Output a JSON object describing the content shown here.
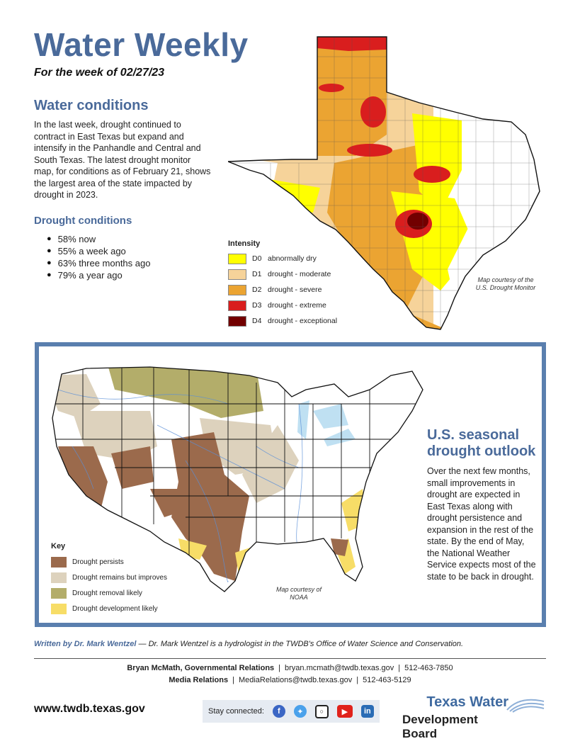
{
  "header": {
    "title": "Water Weekly",
    "week": "For the week of 02/27/23"
  },
  "water_conditions": {
    "heading": "Water conditions",
    "body": "In the last week, drought continued to contract in East Texas but expand and intensify in the Panhandle and Central and South Texas. The latest drought monitor map, for conditions as of February 21, shows the largest area of the state impacted by drought in 2023."
  },
  "drought_conditions": {
    "heading": "Drought conditions",
    "items": [
      "58% now",
      "55% a week ago",
      "63% three months ago",
      "79% a year ago"
    ]
  },
  "texas_map": {
    "legend_title": "Intensity",
    "legend": [
      {
        "code": "D0",
        "label": "abnormally dry",
        "color": "#ffff00"
      },
      {
        "code": "D1",
        "label": "drought - moderate",
        "color": "#f6d39a"
      },
      {
        "code": "D2",
        "label": "drought - severe",
        "color": "#eba432"
      },
      {
        "code": "D3",
        "label": "drought - extreme",
        "color": "#d91e1e"
      },
      {
        "code": "D4",
        "label": "drought - exceptional",
        "color": "#720000"
      }
    ],
    "credit": "Map courtesy of the U.S. Drought Monitor"
  },
  "us_map": {
    "key_title": "Key",
    "key": [
      {
        "label": "Drought persists",
        "color": "#9b6a4c"
      },
      {
        "label": "Drought remains but improves",
        "color": "#ddd2bd"
      },
      {
        "label": "Drought removal likely",
        "color": "#b3ad6a"
      },
      {
        "label": "Drought development likely",
        "color": "#f7dd67"
      }
    ],
    "credit": "Map courtesy of NOAA"
  },
  "outlook": {
    "heading": "U.S. seasonal drought outlook",
    "body": "Over the next few months, small improvements in drought are expected in East Texas along with drought persistence and expansion in the rest of the state. By the end of May, the National Weather Service expects most of the state to be back in drought."
  },
  "author": {
    "label": "Written by Dr. Mark Wentzel",
    "bio": " — Dr. Mark Wentzel is a hydrologist in the TWDB's Office of Water Science and Conservation."
  },
  "contacts": [
    {
      "name": "Bryan McMath, Governmental Relations",
      "email": "bryan.mcmath@twdb.texas.gov",
      "phone": "512-463-7850"
    },
    {
      "name": "Media Relations",
      "email": "MediaRelations@twdb.texas.gov",
      "phone": "512-463-5129"
    }
  ],
  "footer": {
    "website": "www.twdb.texas.gov",
    "stay_connected": "Stay connected:",
    "social_icons": [
      "facebook-icon",
      "twitter-icon",
      "instagram-icon",
      "youtube-icon",
      "linkedin-icon"
    ],
    "logo_line1": "Texas Water",
    "logo_line2": "Development Board"
  },
  "colors": {
    "accent": "#4a6a9a",
    "border": "#5a7fae"
  }
}
